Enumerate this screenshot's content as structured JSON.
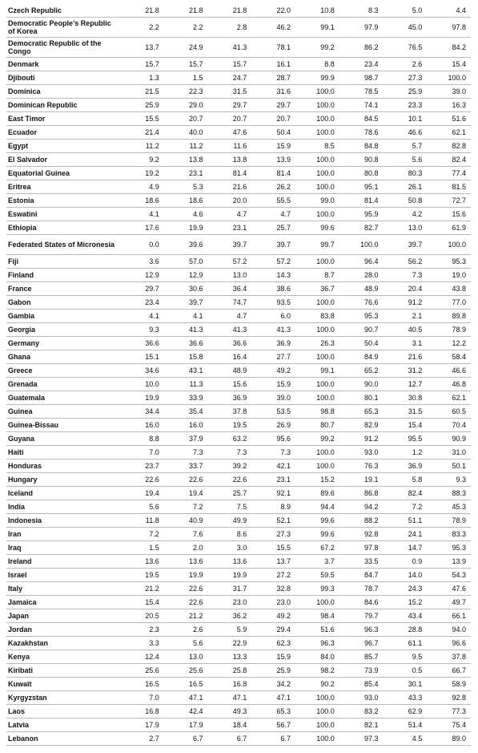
{
  "table": {
    "rows": [
      {
        "name": "Czech Republic",
        "values": [
          "21.8",
          "21.8",
          "21.8",
          "22.0",
          "10.8",
          "8.3",
          "5.0",
          "4.4"
        ]
      },
      {
        "name": "Democratic People’s Republic of Korea",
        "values": [
          "2.2",
          "2.2",
          "2.8",
          "46.2",
          "99.1",
          "97.9",
          "45.0",
          "97.8"
        ]
      },
      {
        "name": "Democratic Republic of the Congo",
        "values": [
          "13.7",
          "24.9",
          "41.3",
          "78.1",
          "99.2",
          "86.2",
          "76.5",
          "84.2"
        ]
      },
      {
        "name": "Denmark",
        "values": [
          "15.7",
          "15.7",
          "15.7",
          "16.1",
          "8.8",
          "23.4",
          "2.6",
          "15.4"
        ]
      },
      {
        "name": "Djibouti",
        "values": [
          "1.3",
          "1.5",
          "24.7",
          "28.7",
          "99.9",
          "98.7",
          "27.3",
          "100.0"
        ]
      },
      {
        "name": "Dominica",
        "values": [
          "21.5",
          "22.3",
          "31.5",
          "31.6",
          "100.0",
          "78.5",
          "25.9",
          "39.0"
        ]
      },
      {
        "name": "Dominican Republic",
        "values": [
          "25.9",
          "29.0",
          "29.7",
          "29.7",
          "100.0",
          "74.1",
          "23.3",
          "16.3"
        ]
      },
      {
        "name": "East Timor",
        "values": [
          "15.5",
          "20.7",
          "20.7",
          "20.7",
          "100.0",
          "84.5",
          "10.1",
          "51.6"
        ]
      },
      {
        "name": "Ecuador",
        "values": [
          "21.4",
          "40.0",
          "47.6",
          "50.4",
          "100.0",
          "78.6",
          "46.6",
          "62.1"
        ]
      },
      {
        "name": "Egypt",
        "values": [
          "11.2",
          "11.2",
          "11.6",
          "15.9",
          "8.5",
          "84.8",
          "5.7",
          "82.8"
        ]
      },
      {
        "name": "El Salvador",
        "values": [
          "9.2",
          "13.8",
          "13.8",
          "13.9",
          "100.0",
          "90.8",
          "5.6",
          "82.4"
        ]
      },
      {
        "name": "Equatorial Guinea",
        "values": [
          "19.2",
          "23.1",
          "81.4",
          "81.4",
          "100.0",
          "80.8",
          "80.3",
          "77.4"
        ]
      },
      {
        "name": "Eritrea",
        "values": [
          "4.9",
          "5.3",
          "21.6",
          "26.2",
          "100.0",
          "95.1",
          "26.1",
          "81.5"
        ]
      },
      {
        "name": "Estonia",
        "values": [
          "18.6",
          "18.6",
          "20.0",
          "55.5",
          "99.0",
          "81.4",
          "50.8",
          "72.7"
        ]
      },
      {
        "name": "Eswatini",
        "values": [
          "4.1",
          "4.6",
          "4.7",
          "4.7",
          "100.0",
          "95.9",
          "4.2",
          "15.6"
        ]
      },
      {
        "name": "Ethiopia",
        "values": [
          "17.6",
          "19.9",
          "23.1",
          "25.7",
          "99.6",
          "82.7",
          "13.0",
          "61.9"
        ]
      },
      {
        "name": "Federated States of Micronesia",
        "values": [
          "0.0",
          "39.6",
          "39.7",
          "39.7",
          "99.7",
          "100.0",
          "39.7",
          "100.0"
        ]
      },
      {
        "name": "Fiji",
        "values": [
          "3.6",
          "57.0",
          "57.2",
          "57.2",
          "100.0",
          "96.4",
          "56.2",
          "95.3"
        ]
      },
      {
        "name": "Finland",
        "values": [
          "12.9",
          "12.9",
          "13.0",
          "14.3",
          "8.7",
          "28.0",
          "7.3",
          "19.0"
        ]
      },
      {
        "name": "France",
        "values": [
          "29.7",
          "30.6",
          "36.4",
          "38.6",
          "36.7",
          "48.9",
          "20.4",
          "43.8"
        ]
      },
      {
        "name": "Gabon",
        "values": [
          "23.4",
          "39.7",
          "74.7",
          "93.5",
          "100.0",
          "76.6",
          "91.2",
          "77.0"
        ]
      },
      {
        "name": "Gambia",
        "values": [
          "4.1",
          "4.1",
          "4.7",
          "6.0",
          "83.8",
          "95.3",
          "2.1",
          "89.8"
        ]
      },
      {
        "name": "Georgia",
        "values": [
          "9.3",
          "41.3",
          "41.3",
          "41.3",
          "100.0",
          "90.7",
          "40.5",
          "78.9"
        ]
      },
      {
        "name": "Germany",
        "values": [
          "36.6",
          "36.6",
          "36.6",
          "36.9",
          "26.3",
          "50.4",
          "3.1",
          "12.2"
        ]
      },
      {
        "name": "Ghana",
        "values": [
          "15.1",
          "15.8",
          "16.4",
          "27.7",
          "100.0",
          "84.9",
          "21.6",
          "58.4"
        ]
      },
      {
        "name": "Greece",
        "values": [
          "34.6",
          "43.1",
          "48.9",
          "49.2",
          "99.1",
          "65.2",
          "31.2",
          "46.6"
        ]
      },
      {
        "name": "Grenada",
        "values": [
          "10.0",
          "11.3",
          "15.6",
          "15.9",
          "100.0",
          "90.0",
          "12.7",
          "46.8"
        ]
      },
      {
        "name": "Guatemala",
        "values": [
          "19.9",
          "33.9",
          "36.9",
          "39.0",
          "100.0",
          "80.1",
          "30.8",
          "62.1"
        ]
      },
      {
        "name": "Guinea",
        "values": [
          "34.4",
          "35.4",
          "37.8",
          "53.5",
          "98.8",
          "65.3",
          "31.5",
          "60.5"
        ]
      },
      {
        "name": "Guinea-Bissau",
        "values": [
          "16.0",
          "16.0",
          "19.5",
          "26.9",
          "80.7",
          "82.9",
          "15.4",
          "70.4"
        ]
      },
      {
        "name": "Guyana",
        "values": [
          "8.8",
          "37.9",
          "63.2",
          "95.6",
          "99.2",
          "91.2",
          "95.5",
          "90.9"
        ]
      },
      {
        "name": "Haiti",
        "values": [
          "7.0",
          "7.3",
          "7.3",
          "7.3",
          "100.0",
          "93.0",
          "1.2",
          "31.0"
        ]
      },
      {
        "name": "Honduras",
        "values": [
          "23.7",
          "33.7",
          "39.2",
          "42.1",
          "100.0",
          "76.3",
          "36.9",
          "50.1"
        ]
      },
      {
        "name": "Hungary",
        "values": [
          "22.6",
          "22.6",
          "22.6",
          "23.1",
          "15.2",
          "19.1",
          "5.8",
          "9.3"
        ]
      },
      {
        "name": "Iceland",
        "values": [
          "19.4",
          "19.4",
          "25.7",
          "92.1",
          "89.6",
          "86.8",
          "82.4",
          "88.3"
        ]
      },
      {
        "name": "India",
        "values": [
          "5.6",
          "7.2",
          "7.5",
          "8.9",
          "94.4",
          "94.2",
          "7.2",
          "45.3"
        ]
      },
      {
        "name": "Indonesia",
        "values": [
          "11.8",
          "40.9",
          "49.9",
          "52.1",
          "99.6",
          "88.2",
          "51.1",
          "78.9"
        ]
      },
      {
        "name": "Iran",
        "values": [
          "7.2",
          "7.6",
          "8.6",
          "27.3",
          "99.6",
          "92.8",
          "24.1",
          "83.3"
        ]
      },
      {
        "name": "Iraq",
        "values": [
          "1.5",
          "2.0",
          "3.0",
          "15.5",
          "67.2",
          "97.8",
          "14.7",
          "95.3"
        ]
      },
      {
        "name": "Ireland",
        "values": [
          "13.6",
          "13.6",
          "13.6",
          "13.7",
          "3.7",
          "33.5",
          "0.9",
          "13.9"
        ]
      },
      {
        "name": "Israel",
        "values": [
          "19.5",
          "19.9",
          "19.9",
          "27.2",
          "59.5",
          "84.7",
          "14.0",
          "54.3"
        ]
      },
      {
        "name": "Italy",
        "values": [
          "21.2",
          "22.6",
          "31.7",
          "32.8",
          "99.3",
          "78.7",
          "24.3",
          "47.6"
        ]
      },
      {
        "name": "Jamaica",
        "values": [
          "15.4",
          "22.6",
          "23.0",
          "23.0",
          "100.0",
          "84.6",
          "15.2",
          "49.7"
        ]
      },
      {
        "name": "Japan",
        "values": [
          "20.5",
          "21.2",
          "36.2",
          "49.2",
          "98.4",
          "79.7",
          "43.4",
          "66.1"
        ]
      },
      {
        "name": "Jordan",
        "values": [
          "2.3",
          "2.6",
          "5.9",
          "29.4",
          "51.6",
          "96.3",
          "28.8",
          "94.0"
        ]
      },
      {
        "name": "Kazakhstan",
        "values": [
          "3.3",
          "5.6",
          "22.9",
          "62.3",
          "96.3",
          "96.7",
          "61.1",
          "96.6"
        ]
      },
      {
        "name": "Kenya",
        "values": [
          "12.4",
          "13.0",
          "13.3",
          "15.9",
          "84.0",
          "85.7",
          "9.5",
          "37.8"
        ]
      },
      {
        "name": "Kiribati",
        "values": [
          "25.6",
          "25.6",
          "25.8",
          "25.9",
          "98.2",
          "73.9",
          "0.5",
          "66.7"
        ]
      },
      {
        "name": "Kuwait",
        "values": [
          "16.5",
          "16.5",
          "16.8",
          "34.2",
          "90.2",
          "85.4",
          "30.1",
          "58.9"
        ]
      },
      {
        "name": "Kyrgyzstan",
        "values": [
          "7.0",
          "47.1",
          "47.1",
          "47.1",
          "100.0",
          "93.0",
          "43.3",
          "92.8"
        ]
      },
      {
        "name": "Laos",
        "values": [
          "16.8",
          "42.4",
          "49.3",
          "65.3",
          "100.0",
          "83.2",
          "62.9",
          "77.3"
        ]
      },
      {
        "name": "Latvia",
        "values": [
          "17.9",
          "17.9",
          "18.4",
          "56.7",
          "100.0",
          "82.1",
          "51.4",
          "75.4"
        ]
      },
      {
        "name": "Lebanon",
        "values": [
          "2.7",
          "6.7",
          "6.7",
          "6.7",
          "100.0",
          "97.3",
          "4.5",
          "89.0"
        ]
      }
    ]
  }
}
